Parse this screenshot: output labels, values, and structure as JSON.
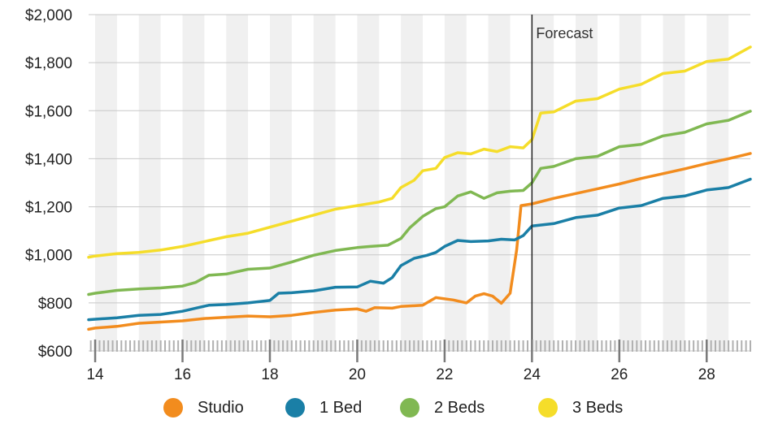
{
  "chart_data": {
    "type": "line",
    "title": "",
    "xlabel": "",
    "ylabel": "",
    "xlim": [
      13.85,
      29.0
    ],
    "ylim": [
      600,
      2000
    ],
    "yticks": [
      600,
      800,
      1000,
      1200,
      1400,
      1600,
      1800,
      2000
    ],
    "ytick_labels": [
      "$600",
      "$800",
      "$1,000",
      "$1,200",
      "$1,400",
      "$1,600",
      "$1,800",
      "$2,000"
    ],
    "xticks": [
      14,
      16,
      18,
      20,
      22,
      24,
      26,
      28
    ],
    "xtick_labels": [
      "14",
      "16",
      "18",
      "20",
      "22",
      "24",
      "26",
      "28"
    ],
    "grid": "horizontal",
    "background_bands": "alternating vertical bands",
    "legend_position": "bottom",
    "annotations": [
      {
        "label": "Forecast",
        "x": 24
      }
    ],
    "series": [
      {
        "name": "Studio",
        "color": "#f28c1e",
        "points": [
          [
            13.85,
            690
          ],
          [
            14.0,
            695
          ],
          [
            14.5,
            702
          ],
          [
            15.0,
            715
          ],
          [
            15.5,
            720
          ],
          [
            16.0,
            725
          ],
          [
            16.5,
            735
          ],
          [
            17.0,
            740
          ],
          [
            17.5,
            745
          ],
          [
            18.0,
            742
          ],
          [
            18.5,
            748
          ],
          [
            19.0,
            760
          ],
          [
            19.5,
            770
          ],
          [
            20.0,
            775
          ],
          [
            20.2,
            765
          ],
          [
            20.4,
            780
          ],
          [
            20.8,
            778
          ],
          [
            21.0,
            785
          ],
          [
            21.5,
            790
          ],
          [
            21.8,
            822
          ],
          [
            22.2,
            812
          ],
          [
            22.5,
            800
          ],
          [
            22.7,
            828
          ],
          [
            22.9,
            838
          ],
          [
            23.1,
            828
          ],
          [
            23.3,
            798
          ],
          [
            23.5,
            840
          ],
          [
            23.65,
            1020
          ],
          [
            23.75,
            1205
          ],
          [
            24.0,
            1212
          ],
          [
            24.5,
            1235
          ],
          [
            25.0,
            1255
          ],
          [
            25.5,
            1275
          ],
          [
            26.0,
            1295
          ],
          [
            26.5,
            1318
          ],
          [
            27.0,
            1338
          ],
          [
            27.5,
            1358
          ],
          [
            28.0,
            1380
          ],
          [
            28.5,
            1400
          ],
          [
            29.0,
            1422
          ]
        ]
      },
      {
        "name": "1 Bed",
        "color": "#1a7fa6",
        "points": [
          [
            13.85,
            730
          ],
          [
            14.0,
            732
          ],
          [
            14.5,
            738
          ],
          [
            15.0,
            748
          ],
          [
            15.5,
            752
          ],
          [
            16.0,
            765
          ],
          [
            16.3,
            778
          ],
          [
            16.6,
            790
          ],
          [
            17.0,
            793
          ],
          [
            17.5,
            800
          ],
          [
            18.0,
            810
          ],
          [
            18.2,
            840
          ],
          [
            18.5,
            842
          ],
          [
            19.0,
            850
          ],
          [
            19.5,
            865
          ],
          [
            20.0,
            866
          ],
          [
            20.3,
            890
          ],
          [
            20.6,
            882
          ],
          [
            20.8,
            905
          ],
          [
            21.0,
            955
          ],
          [
            21.3,
            985
          ],
          [
            21.6,
            998
          ],
          [
            21.8,
            1010
          ],
          [
            22.0,
            1035
          ],
          [
            22.3,
            1060
          ],
          [
            22.6,
            1055
          ],
          [
            23.0,
            1058
          ],
          [
            23.3,
            1065
          ],
          [
            23.6,
            1062
          ],
          [
            23.8,
            1080
          ],
          [
            24.0,
            1120
          ],
          [
            24.5,
            1130
          ],
          [
            25.0,
            1155
          ],
          [
            25.5,
            1165
          ],
          [
            26.0,
            1195
          ],
          [
            26.5,
            1205
          ],
          [
            27.0,
            1235
          ],
          [
            27.5,
            1245
          ],
          [
            28.0,
            1270
          ],
          [
            28.5,
            1280
          ],
          [
            29.0,
            1315
          ]
        ]
      },
      {
        "name": "2 Beds",
        "color": "#80b852",
        "points": [
          [
            13.85,
            835
          ],
          [
            14.0,
            840
          ],
          [
            14.5,
            852
          ],
          [
            15.0,
            858
          ],
          [
            15.5,
            862
          ],
          [
            16.0,
            870
          ],
          [
            16.3,
            885
          ],
          [
            16.6,
            915
          ],
          [
            17.0,
            920
          ],
          [
            17.5,
            940
          ],
          [
            18.0,
            945
          ],
          [
            18.5,
            970
          ],
          [
            19.0,
            998
          ],
          [
            19.5,
            1018
          ],
          [
            20.0,
            1030
          ],
          [
            20.3,
            1035
          ],
          [
            20.7,
            1040
          ],
          [
            21.0,
            1068
          ],
          [
            21.2,
            1112
          ],
          [
            21.5,
            1160
          ],
          [
            21.8,
            1192
          ],
          [
            22.0,
            1200
          ],
          [
            22.3,
            1245
          ],
          [
            22.6,
            1262
          ],
          [
            22.9,
            1235
          ],
          [
            23.2,
            1258
          ],
          [
            23.5,
            1265
          ],
          [
            23.8,
            1268
          ],
          [
            24.0,
            1300
          ],
          [
            24.2,
            1360
          ],
          [
            24.5,
            1368
          ],
          [
            25.0,
            1400
          ],
          [
            25.5,
            1410
          ],
          [
            26.0,
            1450
          ],
          [
            26.5,
            1460
          ],
          [
            27.0,
            1495
          ],
          [
            27.5,
            1510
          ],
          [
            28.0,
            1545
          ],
          [
            28.5,
            1560
          ],
          [
            29.0,
            1598
          ]
        ]
      },
      {
        "name": "3 Beds",
        "color": "#f5dd2a",
        "points": [
          [
            13.85,
            990
          ],
          [
            14.0,
            995
          ],
          [
            14.5,
            1005
          ],
          [
            15.0,
            1010
          ],
          [
            15.5,
            1020
          ],
          [
            16.0,
            1035
          ],
          [
            16.5,
            1055
          ],
          [
            17.0,
            1075
          ],
          [
            17.5,
            1090
          ],
          [
            18.0,
            1115
          ],
          [
            18.5,
            1140
          ],
          [
            19.0,
            1165
          ],
          [
            19.5,
            1190
          ],
          [
            20.0,
            1205
          ],
          [
            20.5,
            1220
          ],
          [
            20.8,
            1235
          ],
          [
            21.0,
            1280
          ],
          [
            21.3,
            1310
          ],
          [
            21.5,
            1350
          ],
          [
            21.8,
            1360
          ],
          [
            22.0,
            1405
          ],
          [
            22.3,
            1425
          ],
          [
            22.6,
            1420
          ],
          [
            22.9,
            1440
          ],
          [
            23.2,
            1430
          ],
          [
            23.5,
            1450
          ],
          [
            23.8,
            1445
          ],
          [
            24.0,
            1480
          ],
          [
            24.2,
            1590
          ],
          [
            24.5,
            1595
          ],
          [
            25.0,
            1640
          ],
          [
            25.5,
            1650
          ],
          [
            26.0,
            1690
          ],
          [
            26.5,
            1710
          ],
          [
            27.0,
            1755
          ],
          [
            27.5,
            1765
          ],
          [
            28.0,
            1805
          ],
          [
            28.5,
            1815
          ],
          [
            29.0,
            1865
          ]
        ]
      }
    ]
  }
}
